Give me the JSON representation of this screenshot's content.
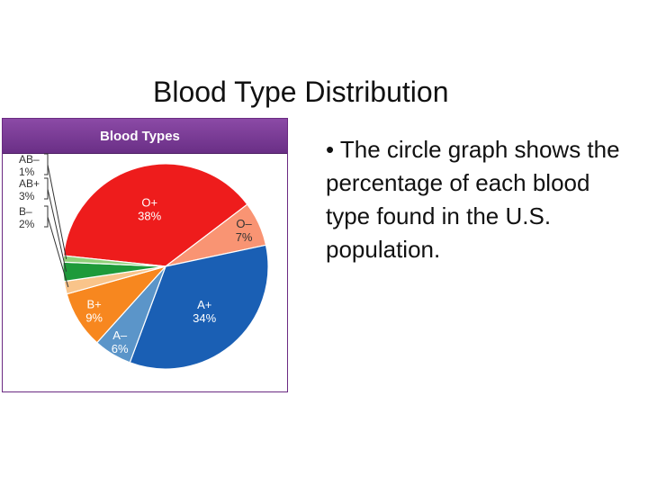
{
  "slide": {
    "title": "Blood Type Distribution",
    "bullet": "• The circle graph shows the percentage of each blood type found in the U.S. population."
  },
  "chart_data": {
    "type": "pie",
    "title": "Blood Types",
    "slices": [
      {
        "name": "O+",
        "value": 38,
        "label": "38%",
        "color": "#ee1c1c",
        "text_color": "#ffffff"
      },
      {
        "name": "O–",
        "value": 7,
        "label": "7%",
        "color": "#f99473",
        "text_color": "#333333"
      },
      {
        "name": "A+",
        "value": 34,
        "label": "34%",
        "color": "#1a5fb4",
        "text_color": "#ffffff"
      },
      {
        "name": "A–",
        "value": 6,
        "label": "6%",
        "color": "#5b95c9",
        "text_color": "#ffffff"
      },
      {
        "name": "B+",
        "value": 9,
        "label": "9%",
        "color": "#f7871f",
        "text_color": "#ffffff"
      },
      {
        "name": "B–",
        "value": 2,
        "label": "2%",
        "color": "#f9c48a",
        "text_color": "#333333"
      },
      {
        "name": "AB+",
        "value": 3,
        "label": "3%",
        "color": "#1e9a3a",
        "text_color": "#333333"
      },
      {
        "name": "AB–",
        "value": 1,
        "label": "1%",
        "color": "#8fd07a",
        "text_color": "#333333"
      }
    ]
  }
}
